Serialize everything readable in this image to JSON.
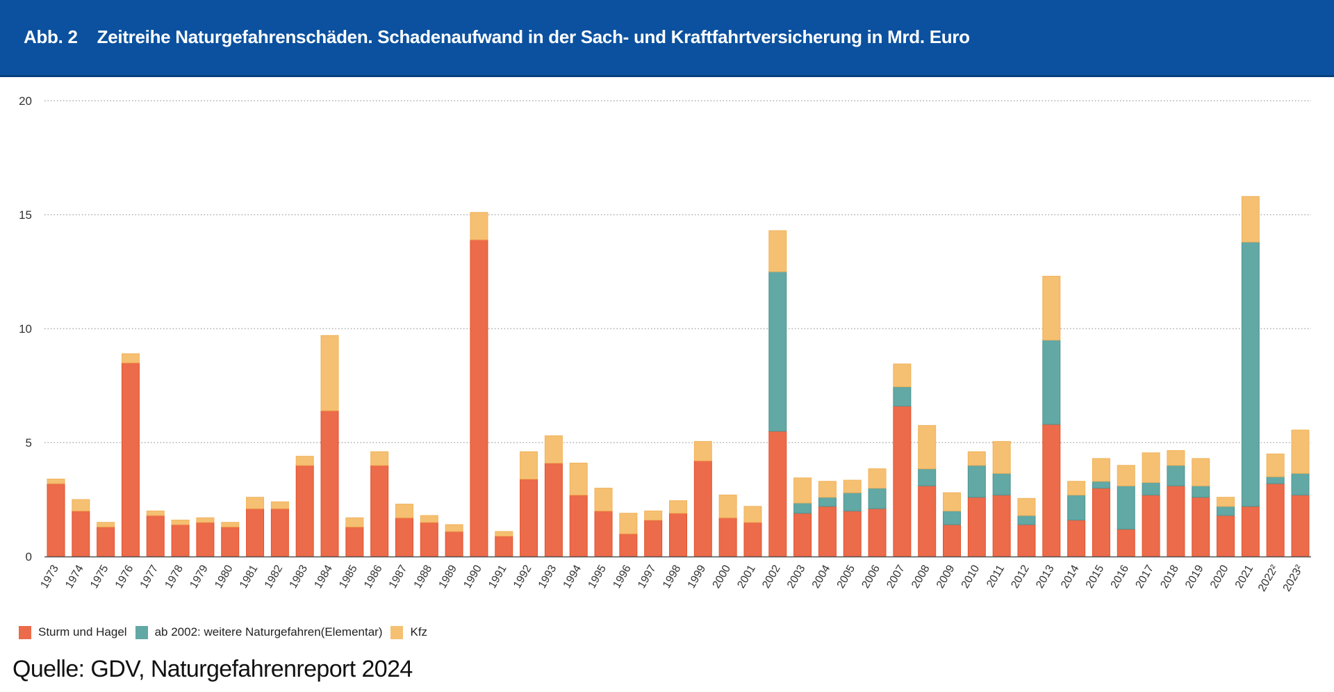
{
  "header": {
    "figure_label": "Abb. 2",
    "title": "Zeitreihe Naturgefahrenschäden. Schadenaufwand in der Sach- und Kraftfahrtversicherung in Mrd. Euro",
    "background_color": "#0b519f"
  },
  "legend": [
    {
      "label": "Sturm und Hagel",
      "color": "#ec6b4a"
    },
    {
      "label": "ab 2002: weitere Naturgefahren(Elementar)",
      "color": "#62a8a5"
    },
    {
      "label": "Kfz",
      "color": "#f5c072"
    }
  ],
  "source": "Quelle: GDV, Naturgefahrenreport 2024",
  "chart_data": {
    "type": "bar",
    "stacked": true,
    "title": "Zeitreihe Naturgefahrenschäden. Schadenaufwand in der Sach- und Kraftfahrtversicherung in Mrd. Euro",
    "xlabel": "",
    "ylabel": "Mrd. Euro",
    "ylim": [
      0,
      20
    ],
    "yticks": [
      0,
      5,
      10,
      15,
      20
    ],
    "grid": true,
    "legend_position": "bottom-left",
    "categories": [
      "1973",
      "1974",
      "1975",
      "1976",
      "1977",
      "1978",
      "1979",
      "1980",
      "1981",
      "1982",
      "1983",
      "1984",
      "1985",
      "1986",
      "1987",
      "1988",
      "1989",
      "1990",
      "1991",
      "1992",
      "1993",
      "1994",
      "1995",
      "1996",
      "1997",
      "1998",
      "1999",
      "2000",
      "2001",
      "2002",
      "2003",
      "2004",
      "2005",
      "2006",
      "2007",
      "2008",
      "2009",
      "2010",
      "2011",
      "2012",
      "2013",
      "2014",
      "2015",
      "2016",
      "2017",
      "2018",
      "2019",
      "2020",
      "2021",
      "2022²",
      "2023²"
    ],
    "series": [
      {
        "name": "Sturm und Hagel",
        "color": "#ec6b4a",
        "values": [
          3.2,
          2.0,
          1.3,
          8.5,
          1.8,
          1.4,
          1.5,
          1.3,
          2.1,
          2.1,
          4.0,
          6.4,
          1.3,
          4.0,
          1.7,
          1.5,
          1.1,
          13.9,
          0.9,
          3.4,
          4.1,
          2.7,
          2.0,
          1.0,
          1.6,
          1.9,
          4.2,
          1.7,
          1.5,
          5.5,
          1.9,
          2.2,
          2.0,
          2.1,
          6.6,
          3.1,
          1.4,
          2.6,
          2.7,
          1.4,
          5.8,
          1.6,
          3.0,
          1.2,
          2.7,
          3.1,
          2.6,
          1.8,
          2.2,
          3.2,
          2.7
        ]
      },
      {
        "name": "ab 2002: weitere Naturgefahren(Elementar)",
        "color": "#62a8a5",
        "values": [
          0,
          0,
          0,
          0,
          0,
          0,
          0,
          0,
          0,
          0,
          0,
          0,
          0,
          0,
          0,
          0,
          0,
          0,
          0,
          0,
          0,
          0,
          0,
          0,
          0,
          0,
          0,
          0,
          0,
          7.0,
          0.45,
          0.4,
          0.8,
          0.9,
          0.85,
          0.75,
          0.6,
          1.4,
          0.95,
          0.4,
          3.7,
          1.1,
          0.3,
          1.9,
          0.55,
          0.9,
          0.5,
          0.4,
          11.6,
          0.3,
          0.95
        ]
      },
      {
        "name": "Kfz",
        "color": "#f5c072",
        "values": [
          0.2,
          0.5,
          0.2,
          0.4,
          0.2,
          0.2,
          0.2,
          0.2,
          0.5,
          0.3,
          0.4,
          3.3,
          0.4,
          0.6,
          0.6,
          0.3,
          0.3,
          1.2,
          0.2,
          1.2,
          1.2,
          1.4,
          1.0,
          0.9,
          0.4,
          0.55,
          0.85,
          1.0,
          0.7,
          1.8,
          1.1,
          0.7,
          0.55,
          0.85,
          1.0,
          1.9,
          0.8,
          0.6,
          1.4,
          0.75,
          2.8,
          0.6,
          1.0,
          0.9,
          1.3,
          0.65,
          1.2,
          0.4,
          2.0,
          1.0,
          1.9
        ]
      }
    ]
  }
}
